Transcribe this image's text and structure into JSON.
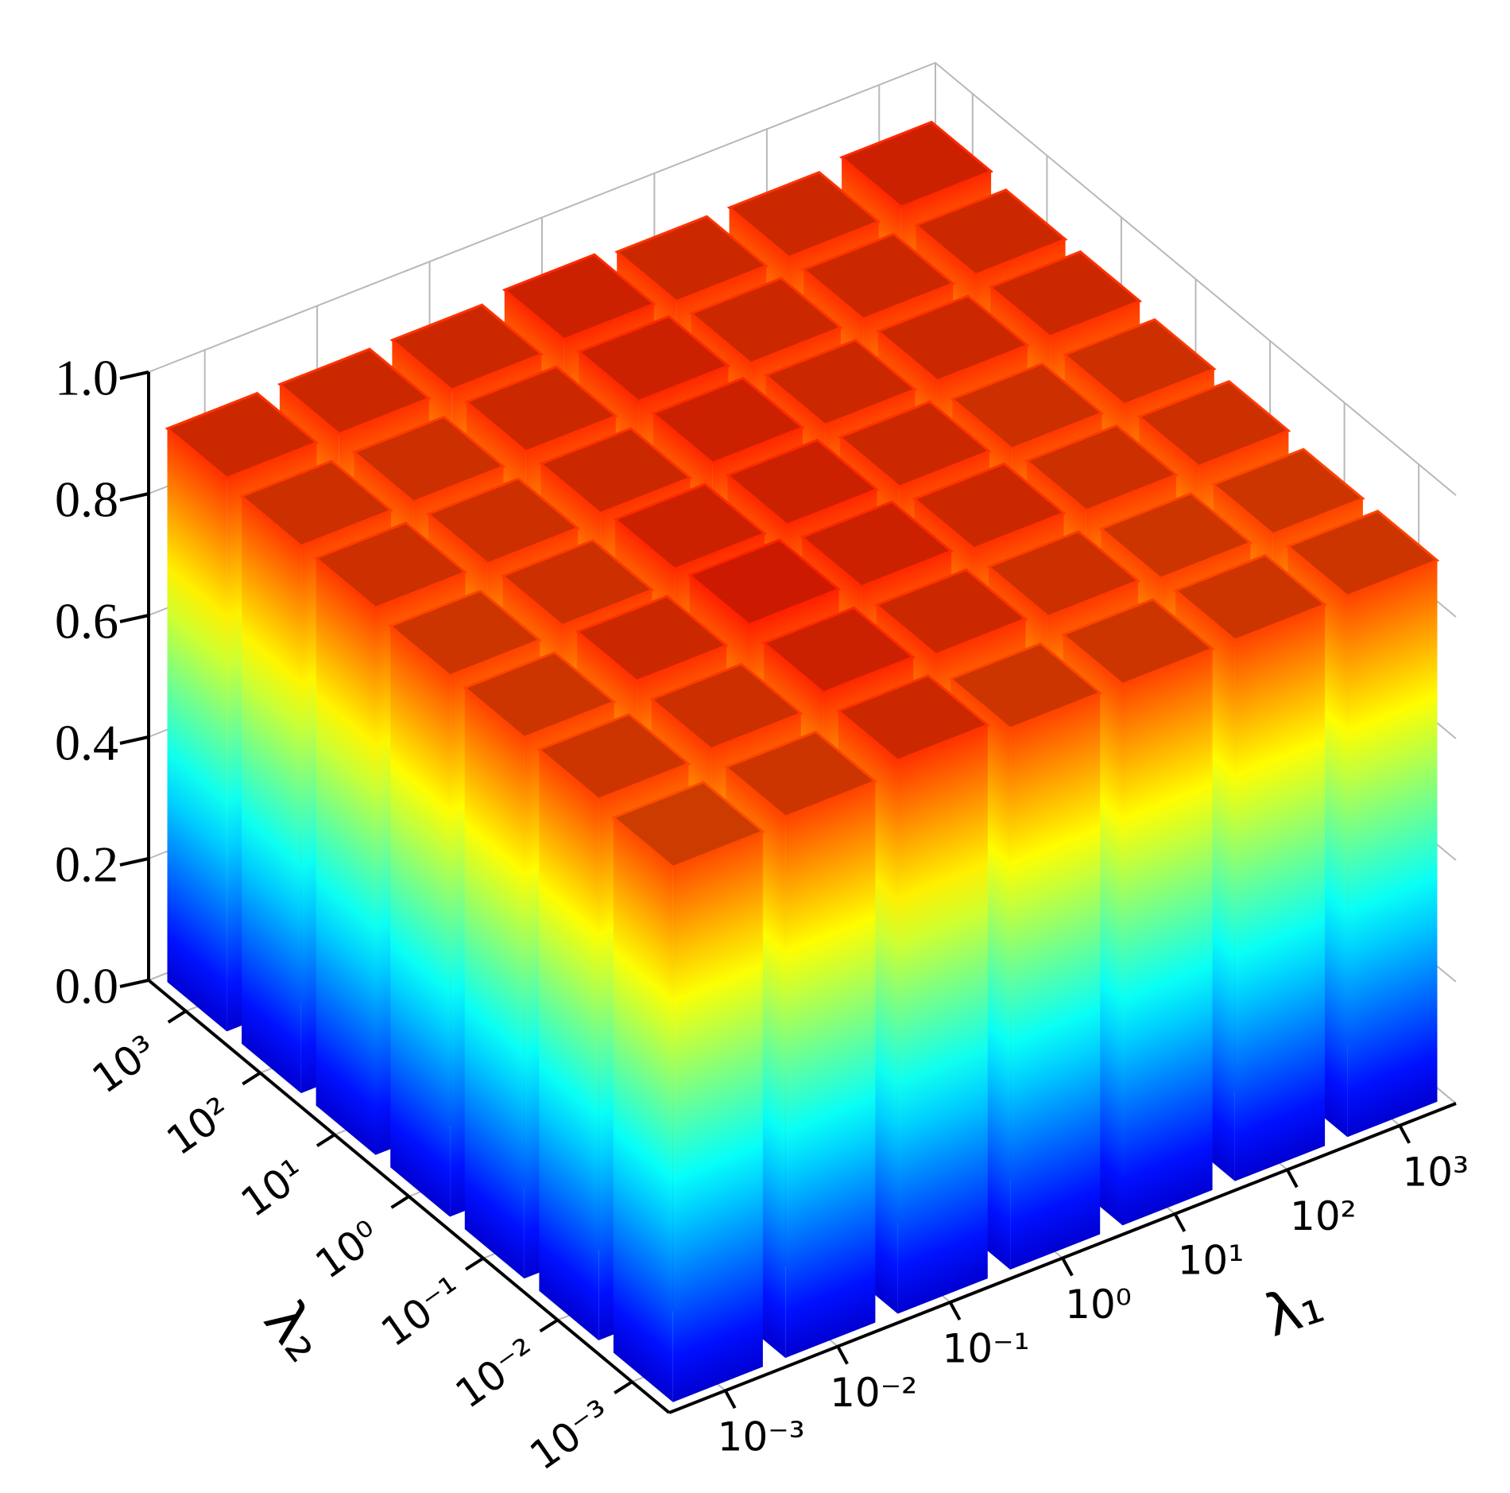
{
  "chart_data": {
    "type": "bar3d",
    "xlabel": "λ₁",
    "ylabel": "λ₂",
    "x_categories": [
      "10⁻³",
      "10⁻²",
      "10⁻¹",
      "10⁰",
      "10¹",
      "10²",
      "10³"
    ],
    "y_categories": [
      "10⁻³",
      "10⁻²",
      "10⁻¹",
      "10⁰",
      "10¹",
      "10²",
      "10³"
    ],
    "values": [
      [
        0.88,
        0.89,
        0.91,
        0.89,
        0.89,
        0.89,
        0.89
      ],
      [
        0.89,
        0.9,
        0.92,
        0.91,
        0.9,
        0.89,
        0.89
      ],
      [
        0.89,
        0.91,
        0.93,
        0.92,
        0.91,
        0.9,
        0.9
      ],
      [
        0.89,
        0.9,
        0.92,
        0.92,
        0.91,
        0.9,
        0.9
      ],
      [
        0.9,
        0.9,
        0.91,
        0.92,
        0.91,
        0.91,
        0.91
      ],
      [
        0.9,
        0.9,
        0.91,
        0.92,
        0.91,
        0.91,
        0.91
      ],
      [
        0.91,
        0.91,
        0.91,
        0.92,
        0.91,
        0.91,
        0.92
      ]
    ],
    "colormap": "jet",
    "zlim": [
      0,
      1
    ],
    "zticks": [
      {
        "value": 0,
        "label": "0.0"
      },
      0.2,
      0.4,
      0.6,
      0.8,
      {
        "value": 1,
        "label": "1.0"
      }
    ],
    "grid": true
  }
}
